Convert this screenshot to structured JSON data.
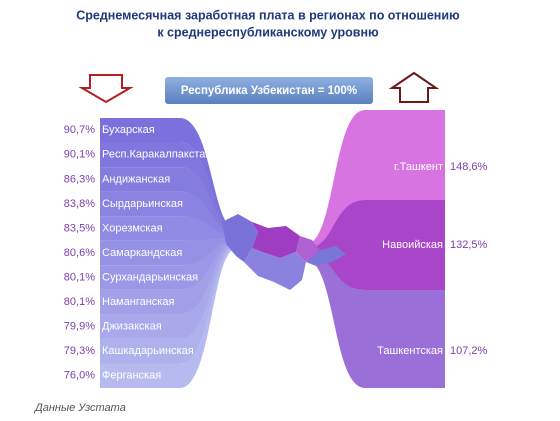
{
  "chart_data": {
    "type": "flow",
    "title": [
      "Среднемесячная заработная плата в регионах по отношению",
      "к среднереспубликанскому уровню"
    ],
    "baseline_label": "Республика Узбекистан = 100%",
    "source": "Данные Узстата",
    "below": {
      "categories": [
        "Бухарская",
        "Респ.Каракалпакстан",
        "Андижанская",
        "Сырдарьинская",
        "Хорезмская",
        "Самаркандская",
        "Сурхандарьинская",
        "Наманганская",
        "Джизакская",
        "Кашкадарьинская",
        "Ферганская"
      ],
      "values": [
        90.7,
        90.1,
        86.3,
        83.8,
        83.5,
        80.6,
        80.1,
        80.1,
        79.9,
        79.3,
        76.0
      ],
      "value_labels": [
        "90,7%",
        "90,1%",
        "86,3%",
        "83,8%",
        "83,5%",
        "80,6%",
        "80,1%",
        "80,1%",
        "79,9%",
        "79,3%",
        "76,0%"
      ],
      "colors": [
        "#7c70dc",
        "#8076dd",
        "#857cdf",
        "#8a83e1",
        "#8f8ae3",
        "#9591e5",
        "#9b98e7",
        "#a1a0e9",
        "#a8a8eb",
        "#afb1ed",
        "#b7baef"
      ]
    },
    "above": {
      "categories": [
        "г.Ташкент",
        "Навоийская",
        "Ташкентская"
      ],
      "values": [
        148.6,
        132.5,
        107.2
      ],
      "value_labels": [
        "148,6%",
        "132,5%",
        "107,2%"
      ],
      "colors": [
        "#d874e2",
        "#a845c8",
        "#9a6fd8"
      ]
    }
  }
}
